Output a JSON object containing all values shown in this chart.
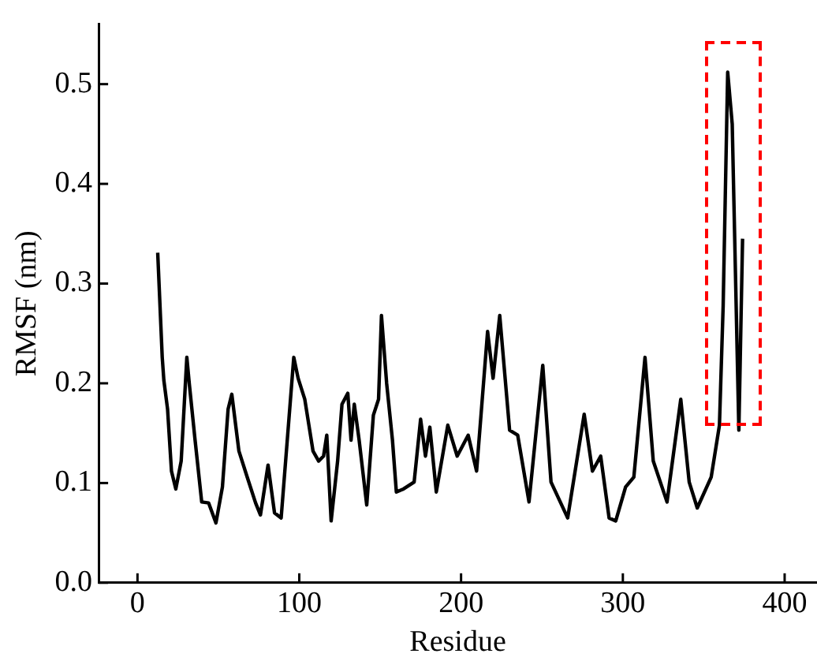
{
  "chart_data": {
    "type": "line",
    "xlabel": "Residue",
    "ylabel": "RMSF (nm)",
    "xlim": [
      -24,
      420
    ],
    "xticks": [
      0,
      100,
      200,
      300,
      400
    ],
    "ylim": [
      0,
      0.56
    ],
    "yticks": [
      {
        "value": 0,
        "label": "0.0"
      },
      {
        "value": 0.1,
        "label": "0.1"
      },
      {
        "value": 0.2,
        "label": "0.2"
      },
      {
        "value": 0.3,
        "label": "0.3"
      },
      {
        "value": 0.4,
        "label": "0.4"
      },
      {
        "value": 0.5,
        "label": "0.5"
      }
    ],
    "grid": false,
    "legend": false,
    "marker": "none",
    "line_style": "solid",
    "series": [
      {
        "color": "#000000",
        "x": [
          12.5,
          15.3,
          16.3,
          18.6,
          21,
          23.7,
          27,
          30.5,
          32,
          35.6,
          39.7,
          44,
          48.5,
          52.5,
          56,
          58.3,
          62.7,
          67.8,
          73,
          76,
          80.7,
          84.7,
          88.8,
          96.6,
          99.3,
          103.4,
          108.5,
          112,
          115,
          117,
          119.7,
          123.7,
          126.4,
          130,
          132,
          134,
          137,
          141.7,
          145.8,
          149,
          150.8,
          154,
          157.6,
          160,
          164.4,
          171,
          175,
          178,
          180.7,
          184.7,
          191.8,
          197.6,
          204.4,
          209.6,
          216.4,
          219.8,
          223.9,
          230,
          235,
          242,
          250.5,
          255.6,
          265.9,
          276.1,
          281.2,
          286.3,
          291.5,
          295.6,
          301.7,
          306.8,
          313.7,
          318.8,
          327.3,
          335.8,
          341,
          346,
          354.6,
          359.7,
          362,
          364.8,
          367.6,
          371.7,
          374
        ],
        "values": [
          0.331,
          0.226,
          0.203,
          0.174,
          0.112,
          0.094,
          0.122,
          0.226,
          0.2,
          0.143,
          0.081,
          0.08,
          0.06,
          0.096,
          0.174,
          0.189,
          0.132,
          0.106,
          0.08,
          0.068,
          0.118,
          0.07,
          0.065,
          0.226,
          0.205,
          0.184,
          0.132,
          0.122,
          0.127,
          0.148,
          0.062,
          0.122,
          0.179,
          0.19,
          0.143,
          0.179,
          0.143,
          0.078,
          0.168,
          0.184,
          0.268,
          0.2,
          0.143,
          0.091,
          0.094,
          0.101,
          0.164,
          0.127,
          0.156,
          0.091,
          0.158,
          0.127,
          0.148,
          0.112,
          0.252,
          0.205,
          0.268,
          0.153,
          0.148,
          0.081,
          0.218,
          0.101,
          0.065,
          0.169,
          0.112,
          0.127,
          0.065,
          0.062,
          0.096,
          0.106,
          0.226,
          0.122,
          0.081,
          0.184,
          0.101,
          0.075,
          0.106,
          0.158,
          0.278,
          0.512,
          0.46,
          0.153,
          0.345
        ]
      }
    ]
  }
}
